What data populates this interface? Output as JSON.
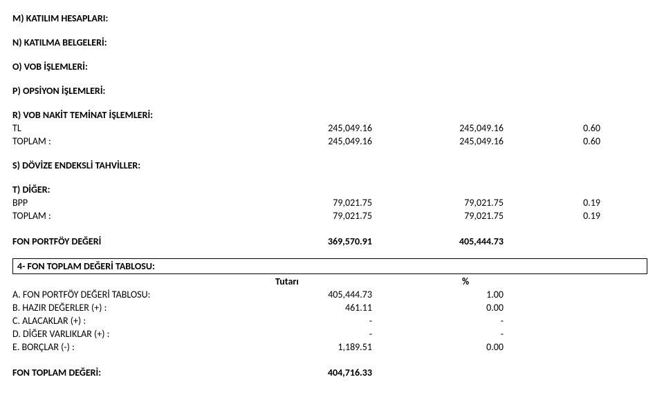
{
  "layout": {
    "label_col_width": 330,
    "num_col_width": 190,
    "small_col_width": 140,
    "font_family": "Calibri, Arial, sans-serif",
    "font_size_pt": 14,
    "font_weight_heading": 700,
    "font_weight_data": 400,
    "text_color": "#000000",
    "background_color": "#ffffff",
    "box_border_color": "#000000"
  },
  "headings": {
    "m": "M) KATILIM HESAPLARI:",
    "n": "N) KATILMA BELGELERİ:",
    "o": "O) VOB İŞLEMLERİ:",
    "p": "P) OPSİYON İŞLEMLERİ:",
    "r": "R) VOB NAKİT TEMİNAT İŞLEMLERİ:",
    "s": "S) DÖVİZE ENDEKSLİ TAHVİLLER:",
    "t": "T) DİĞER:",
    "sec4": "4- FON TOPLAM DEĞERİ TABLOSU:"
  },
  "r_block": {
    "rows": [
      {
        "label": "TL",
        "v1": "245,049.16",
        "v2": "245,049.16",
        "v3": "0.60"
      },
      {
        "label": "TOPLAM :",
        "v1": "245,049.16",
        "v2": "245,049.16",
        "v3": "0.60"
      }
    ]
  },
  "t_block": {
    "rows": [
      {
        "label": "BPP",
        "v1": "79,021.75",
        "v2": "79,021.75",
        "v3": "0.19"
      },
      {
        "label": "TOPLAM :",
        "v1": "79,021.75",
        "v2": "79,021.75",
        "v3": "0.19"
      }
    ]
  },
  "portfoy": {
    "label": "FON PORTFÖY DEĞERİ",
    "v1": "369,570.91",
    "v2": "405,444.73"
  },
  "sec4_columns": {
    "tutari": "Tutarı",
    "pct": "%"
  },
  "sec4_rows": [
    {
      "label": "A. FON PORTFÖY DEĞERİ TABLOSU:",
      "v1": "405,444.73",
      "v2": "1.00"
    },
    {
      "label": "B. HAZIR DEĞERLER (+) :",
      "v1": "461.11",
      "v2": "0.00"
    },
    {
      "label": "C. ALACAKLAR (+) :",
      "v1": "-",
      "v2": "-"
    },
    {
      "label": "D. DİĞER VARLIKLAR (+) :",
      "v1": "-",
      "v2": "-"
    },
    {
      "label": "E. BORÇLAR (-) :",
      "v1": "1,189.51",
      "v2": "0.00"
    }
  ],
  "total": {
    "label": "FON TOPLAM DEĞERİ:",
    "v1": "404,716.33"
  }
}
